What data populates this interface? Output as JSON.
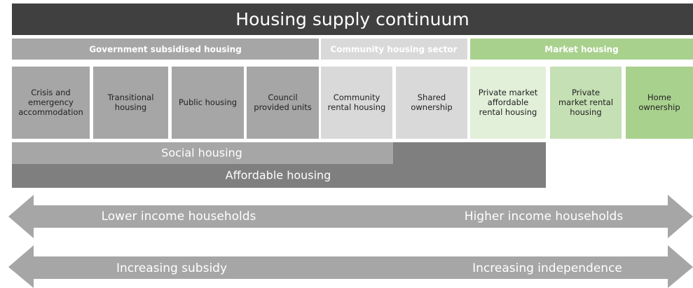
{
  "title": "Housing supply continuum",
  "sectors": [
    "Government subsidised housing",
    "Community housing sector",
    "Market housing"
  ],
  "boxes": [
    [
      "Crisis and",
      "emergency",
      "accommodation"
    ],
    [
      "Transitional",
      "housing"
    ],
    [
      "Public housing"
    ],
    [
      "Council",
      "provided units"
    ],
    [
      "Community",
      "rental housing"
    ],
    [
      "Shared",
      "ownership"
    ],
    [
      "Private market",
      "affordable",
      "rental housing"
    ],
    [
      "Private",
      "market rental",
      "housing"
    ],
    [
      "Home",
      "ownership"
    ]
  ],
  "bands": [
    "Social housing",
    "Affordable housing"
  ],
  "arrows": [
    [
      "Lower income households",
      "Higher income households"
    ],
    [
      "Increasing subsidy",
      "Increasing independence"
    ]
  ]
}
